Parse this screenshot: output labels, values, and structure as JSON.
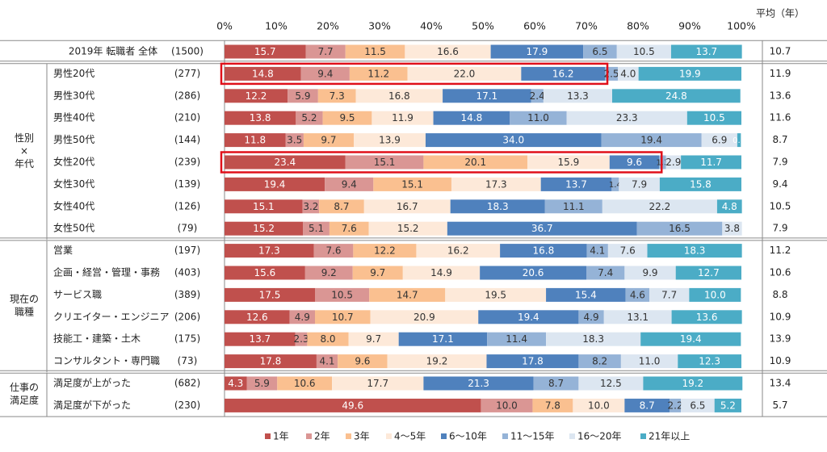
{
  "chart_data": {
    "type": "bar",
    "stacked": true,
    "orientation": "horizontal",
    "percent_scale": true,
    "xlim": [
      0,
      100
    ],
    "x_ticks": [
      "0%",
      "10%",
      "20%",
      "30%",
      "40%",
      "50%",
      "60%",
      "70%",
      "80%",
      "90%",
      "100%"
    ],
    "avg_header": "平均（年）",
    "legend_position": "bottom",
    "series": [
      {
        "name": "1年",
        "color": "#c0504d"
      },
      {
        "name": "2年",
        "color": "#da9694"
      },
      {
        "name": "3年",
        "color": "#fac090"
      },
      {
        "name": "4～5年",
        "color": "#fde9d9"
      },
      {
        "name": "6～10年",
        "color": "#4f81bd"
      },
      {
        "name": "11～15年",
        "color": "#95b3d7"
      },
      {
        "name": "16～20年",
        "color": "#dce6f1"
      },
      {
        "name": "21年以上",
        "color": "#4bacc6"
      }
    ],
    "groups": [
      {
        "label": "",
        "rows": [
          0
        ]
      },
      {
        "label": "性別\n×\n年代",
        "rows": [
          1,
          2,
          3,
          4,
          5,
          6,
          7,
          8
        ]
      },
      {
        "label": "現在の\n職種",
        "rows": [
          9,
          10,
          11,
          12,
          13,
          14
        ]
      },
      {
        "label": "仕事の\n満足度",
        "rows": [
          15,
          16
        ]
      }
    ],
    "rows": [
      {
        "label": "2019年 転職者 全体",
        "n": "(1500)",
        "values": [
          15.7,
          7.7,
          11.5,
          16.6,
          17.9,
          6.5,
          10.5,
          13.7
        ],
        "avg": "10.7"
      },
      {
        "label": "男性20代",
        "n": "(277)",
        "values": [
          14.8,
          9.4,
          11.2,
          22.0,
          16.2,
          2.5,
          4.0,
          19.9
        ],
        "avg": "11.9",
        "highlight_range": [
          0,
          4
        ]
      },
      {
        "label": "男性30代",
        "n": "(286)",
        "values": [
          12.2,
          5.9,
          7.3,
          16.8,
          17.1,
          2.4,
          13.3,
          24.8
        ],
        "avg": "13.6"
      },
      {
        "label": "男性40代",
        "n": "(210)",
        "values": [
          13.8,
          5.2,
          9.5,
          11.9,
          14.8,
          11.0,
          23.3,
          10.5
        ],
        "avg": "11.6"
      },
      {
        "label": "男性50代",
        "n": "(144)",
        "values": [
          11.8,
          3.5,
          9.7,
          13.9,
          34.0,
          19.4,
          6.9,
          0.7
        ],
        "avg": "8.7"
      },
      {
        "label": "女性20代",
        "n": "(239)",
        "values": [
          23.4,
          15.1,
          20.1,
          15.9,
          9.6,
          1.3,
          2.9,
          11.7
        ],
        "avg": "7.9",
        "highlight_range": [
          0,
          4
        ]
      },
      {
        "label": "女性30代",
        "n": "(139)",
        "values": [
          19.4,
          9.4,
          15.1,
          17.3,
          13.7,
          1.4,
          7.9,
          15.8
        ],
        "avg": "9.4"
      },
      {
        "label": "女性40代",
        "n": "(126)",
        "values": [
          15.1,
          3.2,
          8.7,
          16.7,
          18.3,
          11.1,
          22.2,
          4.8
        ],
        "avg": "10.5"
      },
      {
        "label": "女性50代",
        "n": "(79)",
        "values": [
          15.2,
          5.1,
          7.6,
          15.2,
          36.7,
          16.5,
          3.8,
          0.0
        ],
        "avg": "7.9"
      },
      {
        "label": "営業",
        "n": "(197)",
        "values": [
          17.3,
          7.6,
          12.2,
          16.2,
          16.8,
          4.1,
          7.6,
          18.3
        ],
        "avg": "11.2"
      },
      {
        "label": "企画・経営・管理・事務",
        "n": "(403)",
        "values": [
          15.6,
          9.2,
          9.7,
          14.9,
          20.6,
          7.4,
          9.9,
          12.7
        ],
        "avg": "10.6"
      },
      {
        "label": "サービス職",
        "n": "(389)",
        "values": [
          17.5,
          10.5,
          14.7,
          19.5,
          15.4,
          4.6,
          7.7,
          10.0
        ],
        "avg": "8.8"
      },
      {
        "label": "クリエイター・エンジニア",
        "n": "(206)",
        "values": [
          12.6,
          4.9,
          10.7,
          20.9,
          19.4,
          4.9,
          13.1,
          13.6
        ],
        "avg": "10.9"
      },
      {
        "label": "技能工・建築・土木",
        "n": "(175)",
        "values": [
          13.7,
          2.3,
          8.0,
          9.7,
          17.1,
          11.4,
          18.3,
          19.4
        ],
        "avg": "13.9"
      },
      {
        "label": "コンサルタント・専門職",
        "n": "(73)",
        "values": [
          17.8,
          4.1,
          9.6,
          19.2,
          17.8,
          8.2,
          11.0,
          12.3
        ],
        "avg": "10.9"
      },
      {
        "label": "満足度が上がった",
        "n": "(682)",
        "values": [
          4.3,
          5.9,
          10.6,
          17.7,
          21.3,
          8.7,
          12.5,
          19.2
        ],
        "avg": "13.4"
      },
      {
        "label": "満足度が下がった",
        "n": "(230)",
        "values": [
          49.6,
          10.0,
          7.8,
          10.0,
          8.7,
          2.2,
          6.5,
          5.2
        ],
        "avg": "5.7"
      }
    ]
  }
}
